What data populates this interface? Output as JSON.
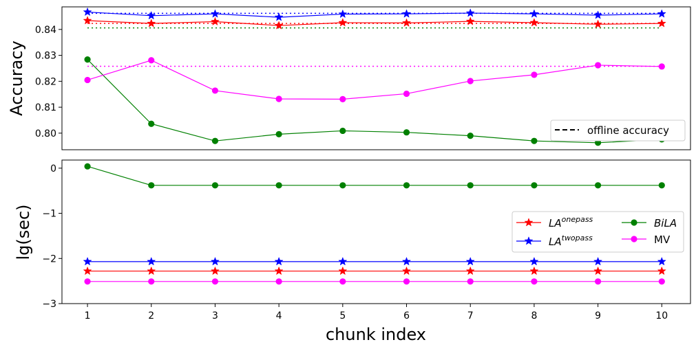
{
  "colors": {
    "la_onepass": "#ff0000",
    "la_twopass": "#0000ff",
    "bila": "#008000",
    "mv": "#ff00ff",
    "offline_legend": "#000000"
  },
  "chart_data": [
    {
      "type": "line",
      "panel": "top",
      "ylabel": "Accuracy",
      "xlabel": "",
      "x": [
        1,
        2,
        3,
        4,
        5,
        6,
        7,
        8,
        9,
        10
      ],
      "xlim": [
        0.6,
        10.45
      ],
      "ylim": [
        0.7936,
        0.8487
      ],
      "yticks": [
        0.8,
        0.81,
        0.82,
        0.83,
        0.84
      ],
      "ytick_labels": [
        "0.80",
        "0.81",
        "0.82",
        "0.83",
        "0.84"
      ],
      "series": [
        {
          "key": "la_onepass",
          "marker": "star",
          "values": [
            0.8434,
            0.8423,
            0.843,
            0.8415,
            0.8426,
            0.8425,
            0.8431,
            0.8426,
            0.842,
            0.8423
          ]
        },
        {
          "key": "la_twopass",
          "marker": "star",
          "values": [
            0.8467,
            0.8453,
            0.846,
            0.8447,
            0.8459,
            0.846,
            0.8463,
            0.846,
            0.8455,
            0.846
          ]
        },
        {
          "key": "bila",
          "marker": "circle",
          "values": [
            0.8284,
            0.8036,
            0.797,
            0.7996,
            0.8009,
            0.8003,
            0.799,
            0.797,
            0.7963,
            0.7976
          ]
        },
        {
          "key": "mv",
          "marker": "circle",
          "values": [
            0.8205,
            0.8281,
            0.8164,
            0.8132,
            0.8131,
            0.8152,
            0.8201,
            0.8225,
            0.8262,
            0.8257
          ]
        }
      ],
      "offline_lines": [
        {
          "key": "la_twopass",
          "value": 0.8462
        },
        {
          "key": "la_onepass",
          "value": 0.8423
        },
        {
          "key": "bila",
          "value": 0.8406
        },
        {
          "key": "mv",
          "value": 0.8258
        }
      ],
      "legend": {
        "placement": "lower-right",
        "entries": [
          {
            "label": "offline accuracy"
          }
        ]
      },
      "grid": false
    },
    {
      "type": "line",
      "panel": "bottom",
      "ylabel": "lg(sec)",
      "xlabel": "chunk index",
      "x": [
        1,
        2,
        3,
        4,
        5,
        6,
        7,
        8,
        9,
        10
      ],
      "xlim": [
        0.6,
        10.45
      ],
      "ylim": [
        -3.0,
        0.18
      ],
      "yticks": [
        -3,
        -2,
        -1,
        0
      ],
      "ytick_labels": [
        "−3",
        "−2",
        "−1",
        "0"
      ],
      "xtick_labels": [
        "1",
        "2",
        "3",
        "4",
        "5",
        "6",
        "7",
        "8",
        "9",
        "10"
      ],
      "series": [
        {
          "key": "la_onepass",
          "marker": "star",
          "values": [
            -2.28,
            -2.28,
            -2.28,
            -2.28,
            -2.28,
            -2.28,
            -2.28,
            -2.28,
            -2.28,
            -2.28
          ]
        },
        {
          "key": "la_twopass",
          "marker": "star",
          "values": [
            -2.07,
            -2.07,
            -2.07,
            -2.07,
            -2.07,
            -2.07,
            -2.07,
            -2.07,
            -2.07,
            -2.07
          ]
        },
        {
          "key": "bila",
          "marker": "circle",
          "values": [
            0.04,
            -0.38,
            -0.38,
            -0.38,
            -0.38,
            -0.38,
            -0.38,
            -0.38,
            -0.38,
            -0.38
          ]
        },
        {
          "key": "mv",
          "marker": "circle",
          "values": [
            -2.51,
            -2.51,
            -2.51,
            -2.51,
            -2.51,
            -2.51,
            -2.51,
            -2.51,
            -2.51,
            -2.51
          ]
        }
      ],
      "legend": {
        "placement": "center-right",
        "entries": [
          {
            "key": "la_onepass",
            "base": "LA",
            "sup": "onepass"
          },
          {
            "key": "la_twopass",
            "base": "LA",
            "sup": "twopass"
          },
          {
            "key": "bila",
            "base": "BiLA"
          },
          {
            "key": "mv",
            "base": "MV"
          }
        ]
      },
      "grid": false
    }
  ]
}
